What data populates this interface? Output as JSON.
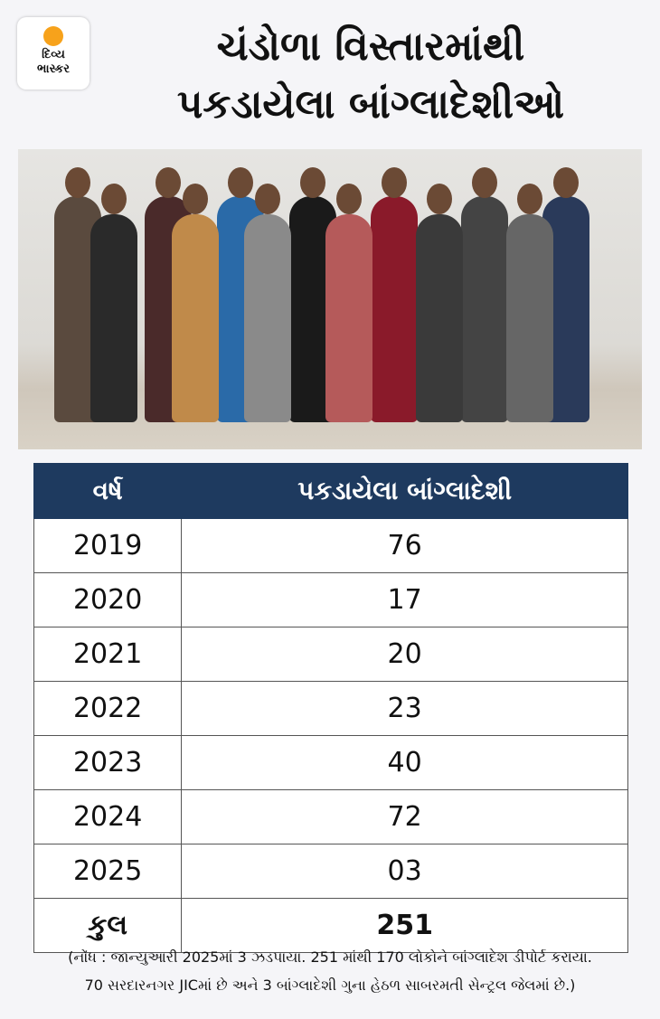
{
  "logo": {
    "line1": "દિવ્ય",
    "line2": "ભાસ્કર",
    "accent_color": "#f7a21b"
  },
  "title": {
    "line1": "ચંડોળા વિસ્તારમાંથી",
    "line2": "પકડાયેલા બાંગ્લાદેશીઓ"
  },
  "photo": {
    "description_icon": "group-photo"
  },
  "table": {
    "header_color": "#1e3a5f",
    "columns": [
      "વર્ષ",
      "પકડાયેલા બાંગ્લાદેશી"
    ],
    "rows": [
      [
        "2019",
        "76"
      ],
      [
        "2020",
        "17"
      ],
      [
        "2021",
        "20"
      ],
      [
        "2022",
        "23"
      ],
      [
        "2023",
        "40"
      ],
      [
        "2024",
        "72"
      ],
      [
        "2025",
        "03"
      ]
    ],
    "total": [
      "કુલ",
      "251"
    ]
  },
  "note": {
    "line1": "(નોંધ : જાન્યુઆરી 2025માં 3 ઝડપાયા. 251 માંથી 170 લોકોને બાંગ્લાદેશ ડીપોર્ટ કરાયા.",
    "line2": "70 સરદારનગર JICમાં છે અને 3 બાંગ્લાદેશી ગુના હેઠળ સાબરમતી સેન્ટ્રલ જેલમાં છે.)"
  }
}
